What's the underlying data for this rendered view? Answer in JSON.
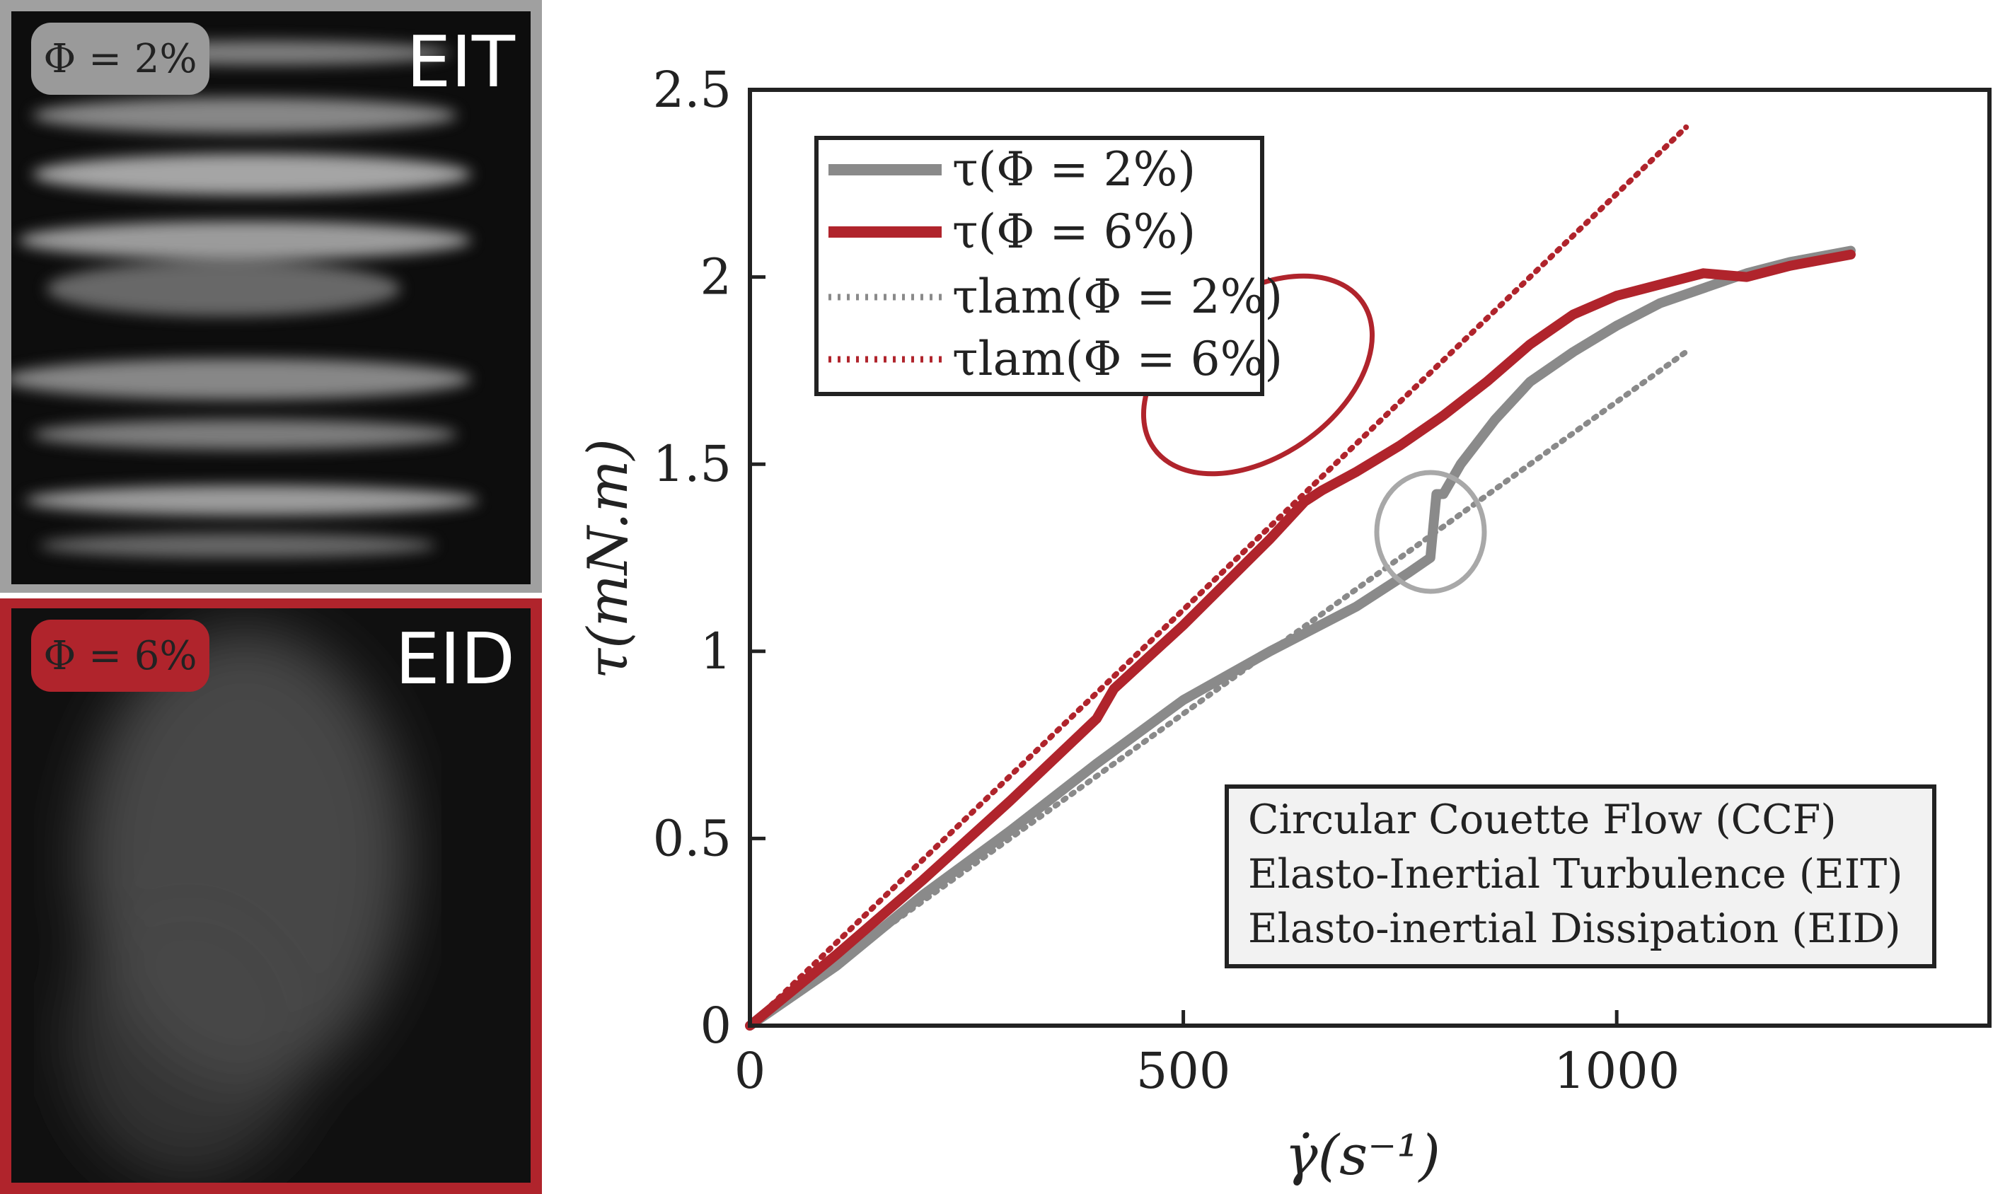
{
  "panels": {
    "top": {
      "badge": "Φ = 2%",
      "label": "EIT"
    },
    "bottom": {
      "badge": "Φ = 6%",
      "label": "EID"
    }
  },
  "colors": {
    "gray": "#8a8a8a",
    "red": "#b0242c",
    "light_red": "#d98a8c",
    "light_gray": "#b5b5b5"
  },
  "chart_data": {
    "type": "line",
    "xlabel": "γ̇(s⁻¹)",
    "ylabel": "τ(mN.m)",
    "xlim": [
      0,
      1430
    ],
    "ylim": [
      0,
      2.5
    ],
    "xticks": [
      0,
      500,
      1000
    ],
    "yticks": [
      0,
      0.5,
      1,
      1.5,
      2,
      2.5
    ],
    "grid": false,
    "legend_position": "top-left",
    "series": [
      {
        "name": "τ(Φ = 2%)",
        "style": "solid",
        "color": "#8a8a8a",
        "x": [
          0,
          100,
          200,
          300,
          400,
          500,
          600,
          700,
          760,
          785,
          792,
          800,
          820,
          860,
          900,
          950,
          1000,
          1050,
          1100,
          1150,
          1200,
          1270
        ],
        "y": [
          0,
          0.16,
          0.35,
          0.52,
          0.7,
          0.87,
          1.0,
          1.12,
          1.21,
          1.25,
          1.42,
          1.42,
          1.5,
          1.62,
          1.72,
          1.8,
          1.87,
          1.93,
          1.97,
          2.01,
          2.04,
          2.07
        ]
      },
      {
        "name": "τ(Φ = 6%)",
        "style": "solid",
        "color": "#b0242c",
        "x": [
          0,
          100,
          200,
          300,
          400,
          420,
          500,
          600,
          640,
          660,
          700,
          750,
          800,
          850,
          900,
          950,
          1000,
          1050,
          1100,
          1150,
          1200,
          1270
        ],
        "y": [
          0,
          0.19,
          0.39,
          0.6,
          0.82,
          0.9,
          1.07,
          1.3,
          1.4,
          1.43,
          1.48,
          1.55,
          1.63,
          1.72,
          1.82,
          1.9,
          1.95,
          1.98,
          2.01,
          2.0,
          2.03,
          2.06
        ]
      },
      {
        "name": "τlam(Φ = 2%)",
        "style": "dotted",
        "color": "#8a8a8a",
        "x": [
          0,
          1080
        ],
        "y": [
          0,
          1.8
        ]
      },
      {
        "name": "τlam(Φ = 6%)",
        "style": "dotted",
        "color": "#b0242c",
        "x": [
          0,
          1080
        ],
        "y": [
          0,
          2.4
        ]
      }
    ],
    "annotations": [
      "Circular Couette Flow (CCF)",
      "Elasto-Inertial Turbulence (EIT)",
      "Elasto-inertial Dissipation (EID)"
    ]
  }
}
